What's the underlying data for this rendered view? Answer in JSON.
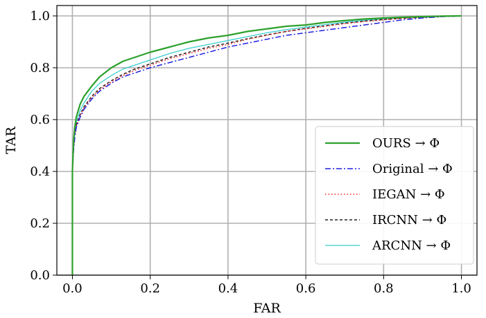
{
  "chart_data": {
    "type": "line",
    "xlabel": "FAR",
    "ylabel": "TAR",
    "xlim": [
      -0.04,
      1.04
    ],
    "ylim": [
      0.0,
      1.04
    ],
    "xticks": [
      0.0,
      0.2,
      0.4,
      0.6,
      0.8,
      1.0
    ],
    "yticks": [
      0.0,
      0.2,
      0.4,
      0.6,
      0.8,
      1.0
    ],
    "xtick_labels": [
      "0.0",
      "0.2",
      "0.4",
      "0.6",
      "0.8",
      "1.0"
    ],
    "ytick_labels": [
      "0.0",
      "0.2",
      "0.4",
      "0.6",
      "0.8",
      "1.0"
    ],
    "grid": true,
    "legend_position": "lower-right",
    "series": [
      {
        "name": "OURS → Φ",
        "color": "#2ca02c",
        "style": "solid",
        "x": [
          0.0,
          0.0,
          0.003,
          0.006,
          0.01,
          0.02,
          0.03,
          0.05,
          0.07,
          0.1,
          0.13,
          0.16,
          0.2,
          0.25,
          0.3,
          0.35,
          0.4,
          0.45,
          0.5,
          0.55,
          0.6,
          0.65,
          0.7,
          0.75,
          0.8,
          0.85,
          0.9,
          0.95,
          1.0
        ],
        "y": [
          0.0,
          0.4,
          0.52,
          0.57,
          0.61,
          0.66,
          0.69,
          0.73,
          0.765,
          0.8,
          0.825,
          0.84,
          0.86,
          0.88,
          0.9,
          0.915,
          0.925,
          0.94,
          0.95,
          0.96,
          0.965,
          0.975,
          0.982,
          0.988,
          0.992,
          0.995,
          0.997,
          0.999,
          1.0
        ]
      },
      {
        "name": "Original → Φ",
        "color": "#1f1fe0",
        "style": "dashdot",
        "x": [
          0.0,
          0.0,
          0.003,
          0.006,
          0.01,
          0.02,
          0.03,
          0.05,
          0.07,
          0.1,
          0.13,
          0.16,
          0.2,
          0.25,
          0.3,
          0.35,
          0.4,
          0.45,
          0.5,
          0.55,
          0.6,
          0.65,
          0.7,
          0.75,
          0.8,
          0.85,
          0.9,
          0.95,
          1.0
        ],
        "y": [
          0.0,
          0.4,
          0.48,
          0.53,
          0.57,
          0.61,
          0.64,
          0.68,
          0.71,
          0.74,
          0.765,
          0.78,
          0.8,
          0.82,
          0.84,
          0.86,
          0.88,
          0.895,
          0.91,
          0.925,
          0.935,
          0.945,
          0.955,
          0.965,
          0.975,
          0.985,
          0.992,
          0.997,
          1.0
        ]
      },
      {
        "name": "IEGAN → Φ",
        "color": "#ff1a1a",
        "style": "dotted",
        "x": [
          0.0,
          0.0,
          0.003,
          0.006,
          0.01,
          0.02,
          0.03,
          0.05,
          0.07,
          0.1,
          0.13,
          0.16,
          0.2,
          0.25,
          0.3,
          0.35,
          0.4,
          0.45,
          0.5,
          0.55,
          0.6,
          0.65,
          0.7,
          0.75,
          0.8,
          0.85,
          0.9,
          0.95,
          1.0
        ],
        "y": [
          0.0,
          0.4,
          0.49,
          0.54,
          0.575,
          0.615,
          0.645,
          0.685,
          0.715,
          0.745,
          0.77,
          0.79,
          0.81,
          0.835,
          0.855,
          0.875,
          0.89,
          0.91,
          0.925,
          0.94,
          0.95,
          0.96,
          0.97,
          0.978,
          0.985,
          0.99,
          0.995,
          0.998,
          1.0
        ]
      },
      {
        "name": "IRCNN → Φ",
        "color": "#222222",
        "style": "dashed",
        "x": [
          0.0,
          0.0,
          0.003,
          0.006,
          0.01,
          0.02,
          0.03,
          0.05,
          0.07,
          0.1,
          0.13,
          0.16,
          0.2,
          0.25,
          0.3,
          0.35,
          0.4,
          0.45,
          0.5,
          0.55,
          0.6,
          0.65,
          0.7,
          0.75,
          0.8,
          0.85,
          0.9,
          0.95,
          1.0
        ],
        "y": [
          0.0,
          0.4,
          0.495,
          0.545,
          0.58,
          0.62,
          0.65,
          0.69,
          0.72,
          0.75,
          0.775,
          0.795,
          0.815,
          0.84,
          0.86,
          0.88,
          0.895,
          0.912,
          0.927,
          0.94,
          0.952,
          0.962,
          0.972,
          0.98,
          0.986,
          0.991,
          0.995,
          0.998,
          1.0
        ]
      },
      {
        "name": "ARCNN → Φ",
        "color": "#33cccc",
        "style": "solid",
        "x": [
          0.0,
          0.0,
          0.003,
          0.006,
          0.01,
          0.02,
          0.03,
          0.05,
          0.07,
          0.1,
          0.13,
          0.16,
          0.2,
          0.25,
          0.3,
          0.35,
          0.4,
          0.45,
          0.5,
          0.55,
          0.6,
          0.65,
          0.7,
          0.75,
          0.8,
          0.85,
          0.9,
          0.95,
          1.0
        ],
        "y": [
          0.0,
          0.4,
          0.5,
          0.55,
          0.59,
          0.635,
          0.665,
          0.71,
          0.74,
          0.77,
          0.795,
          0.81,
          0.83,
          0.855,
          0.875,
          0.89,
          0.905,
          0.92,
          0.935,
          0.947,
          0.957,
          0.967,
          0.976,
          0.983,
          0.989,
          0.993,
          0.996,
          0.998,
          1.0
        ]
      }
    ]
  }
}
